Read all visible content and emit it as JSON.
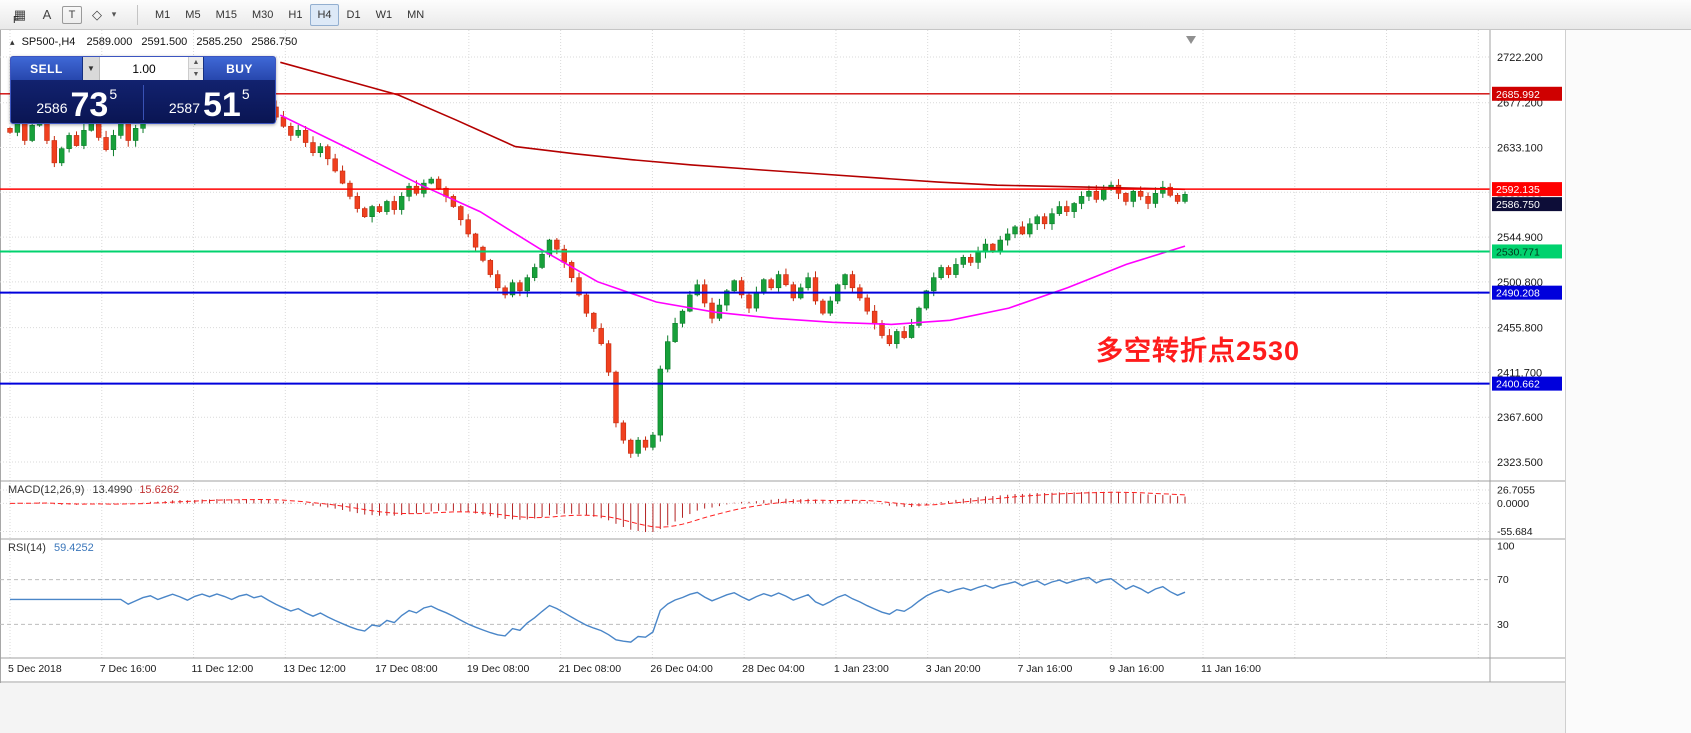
{
  "toolbar": {
    "overlay_letter": "F",
    "icons": [
      {
        "name": "grid-icon",
        "glyph": "▦"
      },
      {
        "name": "text-a-icon",
        "glyph": "A"
      },
      {
        "name": "text-frame-icon",
        "glyph": "T"
      },
      {
        "name": "shapes-icon",
        "glyph": "◇"
      },
      {
        "name": "dropdown-chevron-icon",
        "glyph": "▾"
      }
    ],
    "timeframes": [
      "M1",
      "M5",
      "M15",
      "M30",
      "H1",
      "H4",
      "D1",
      "W1",
      "MN"
    ],
    "active_timeframe": "H4"
  },
  "chart": {
    "header": {
      "marker": "▴",
      "symbol": "SP500-,H4",
      "open": "2589.000",
      "high": "2591.500",
      "low": "2585.250",
      "close": "2586.750"
    },
    "annotation": "多空转折点2530",
    "price_axis": [
      "2722.200",
      "2677.200",
      "2633.100",
      "2589.000",
      "2544.900",
      "2500.800",
      "2455.800",
      "2411.700",
      "2367.600",
      "2323.500"
    ]
  },
  "trade_panel": {
    "sell_label": "SELL",
    "buy_label": "BUY",
    "volume": "1.00",
    "bid": {
      "main": "2586",
      "pips": "73",
      "frac": "5"
    },
    "ask": {
      "main": "2587",
      "pips": "51",
      "frac": "5"
    }
  },
  "macd": {
    "name": "MACD(12,26,9)",
    "value1": "13.4990",
    "value2": "15.6262",
    "axis": [
      "26.7055",
      "0.0000",
      "-55.684"
    ]
  },
  "rsi": {
    "name": "RSI(14)",
    "value": "59.4252",
    "axis": [
      "100",
      "70",
      "30"
    ]
  },
  "time_axis": [
    "5 Dec 2018",
    "7 Dec 16:00",
    "11 Dec 12:00",
    "13 Dec 12:00",
    "17 Dec 08:00",
    "19 Dec 08:00",
    "21 Dec 08:00",
    "26 Dec 04:00",
    "28 Dec 04:00",
    "1 Jan 23:00",
    "3 Jan 20:00",
    "7 Jan 16:00",
    "9 Jan 16:00",
    "11 Jan 16:00"
  ],
  "chart_data": {
    "type": "candlestick",
    "symbol": "SP500-",
    "timeframe": "H4",
    "y_domain": [
      2323.5,
      2722.2
    ],
    "closes": [
      2648,
      2662,
      2640,
      2655,
      2668,
      2640,
      2618,
      2632,
      2645,
      2635,
      2650,
      2660,
      2643,
      2631,
      2645,
      2658,
      2640,
      2652,
      2665,
      2672,
      2660,
      2670,
      2680,
      2672,
      2662,
      2675,
      2683,
      2676,
      2685,
      2679,
      2671,
      2681,
      2686,
      2678,
      2683,
      2673,
      2663,
      2654,
      2645,
      2650,
      2638,
      2628,
      2634,
      2622,
      2610,
      2598,
      2585,
      2573,
      2565,
      2575,
      2570,
      2580,
      2572,
      2585,
      2595,
      2588,
      2598,
      2602,
      2593,
      2585,
      2575,
      2562,
      2548,
      2535,
      2522,
      2508,
      2495,
      2488,
      2500,
      2492,
      2505,
      2515,
      2528,
      2542,
      2533,
      2520,
      2505,
      2488,
      2470,
      2455,
      2440,
      2412,
      2362,
      2345,
      2332,
      2345,
      2338,
      2350,
      2415,
      2442,
      2460,
      2472,
      2488,
      2498,
      2480,
      2465,
      2478,
      2492,
      2502,
      2488,
      2475,
      2490,
      2503,
      2495,
      2508,
      2498,
      2485,
      2495,
      2505,
      2482,
      2470,
      2482,
      2498,
      2508,
      2495,
      2485,
      2472,
      2460,
      2448,
      2440,
      2452,
      2446,
      2458,
      2475,
      2492,
      2505,
      2515,
      2508,
      2518,
      2525,
      2520,
      2530,
      2538,
      2532,
      2542,
      2548,
      2555,
      2548,
      2558,
      2565,
      2558,
      2568,
      2575,
      2570,
      2578,
      2585,
      2590,
      2582,
      2592,
      2596,
      2588,
      2580,
      2590,
      2585,
      2578,
      2588,
      2594,
      2586,
      2580,
      2587
    ],
    "levels": [
      {
        "price": 2685.992,
        "label": "2685.992",
        "color": "#cf0000",
        "text": "#ffffff",
        "width": 1.4
      },
      {
        "price": 2592.135,
        "label": "2592.135",
        "color": "#ff0000",
        "text": "#ffffff",
        "width": 1.6
      },
      {
        "price": 2586.75,
        "label": "2586.750",
        "color": "#0d0d38",
        "text": "#ffffff",
        "line": false
      },
      {
        "price": 2530.771,
        "label": "2530.771",
        "color": "#00d26e",
        "text": "#00331a",
        "width": 2
      },
      {
        "price": 2490.208,
        "label": "2490.208",
        "color": "#0000dc",
        "text": "#ffffff",
        "width": 2
      },
      {
        "price": 2400.662,
        "label": "2400.662",
        "color": "#0000dc",
        "text": "#ffffff",
        "width": 2
      }
    ],
    "moving_averages": [
      {
        "name": "ma-slow-red",
        "color": "#b40000",
        "points": [
          [
            0.23,
            2717
          ],
          [
            0.28,
            2701
          ],
          [
            0.33,
            2685
          ],
          [
            0.38,
            2660
          ],
          [
            0.43,
            2634
          ],
          [
            0.48,
            2627
          ],
          [
            0.53,
            2621
          ],
          [
            0.58,
            2616
          ],
          [
            0.64,
            2611
          ],
          [
            0.69,
            2607
          ],
          [
            0.74,
            2603
          ],
          [
            0.79,
            2599
          ],
          [
            0.84,
            2596
          ],
          [
            0.92,
            2594
          ],
          [
            1.0,
            2592
          ]
        ]
      },
      {
        "name": "ma-fast-magenta",
        "color": "#ff00ff",
        "points": [
          [
            0.23,
            2665
          ],
          [
            0.29,
            2631
          ],
          [
            0.35,
            2596
          ],
          [
            0.4,
            2570
          ],
          [
            0.45,
            2534
          ],
          [
            0.5,
            2501
          ],
          [
            0.55,
            2481
          ],
          [
            0.6,
            2471
          ],
          [
            0.65,
            2465
          ],
          [
            0.7,
            2461
          ],
          [
            0.75,
            2459
          ],
          [
            0.8,
            2463
          ],
          [
            0.85,
            2475
          ],
          [
            0.9,
            2495
          ],
          [
            0.95,
            2518
          ],
          [
            1.0,
            2536
          ]
        ]
      }
    ],
    "indicator_params": {
      "macd": [
        12,
        26,
        9
      ],
      "rsi": 14
    }
  }
}
